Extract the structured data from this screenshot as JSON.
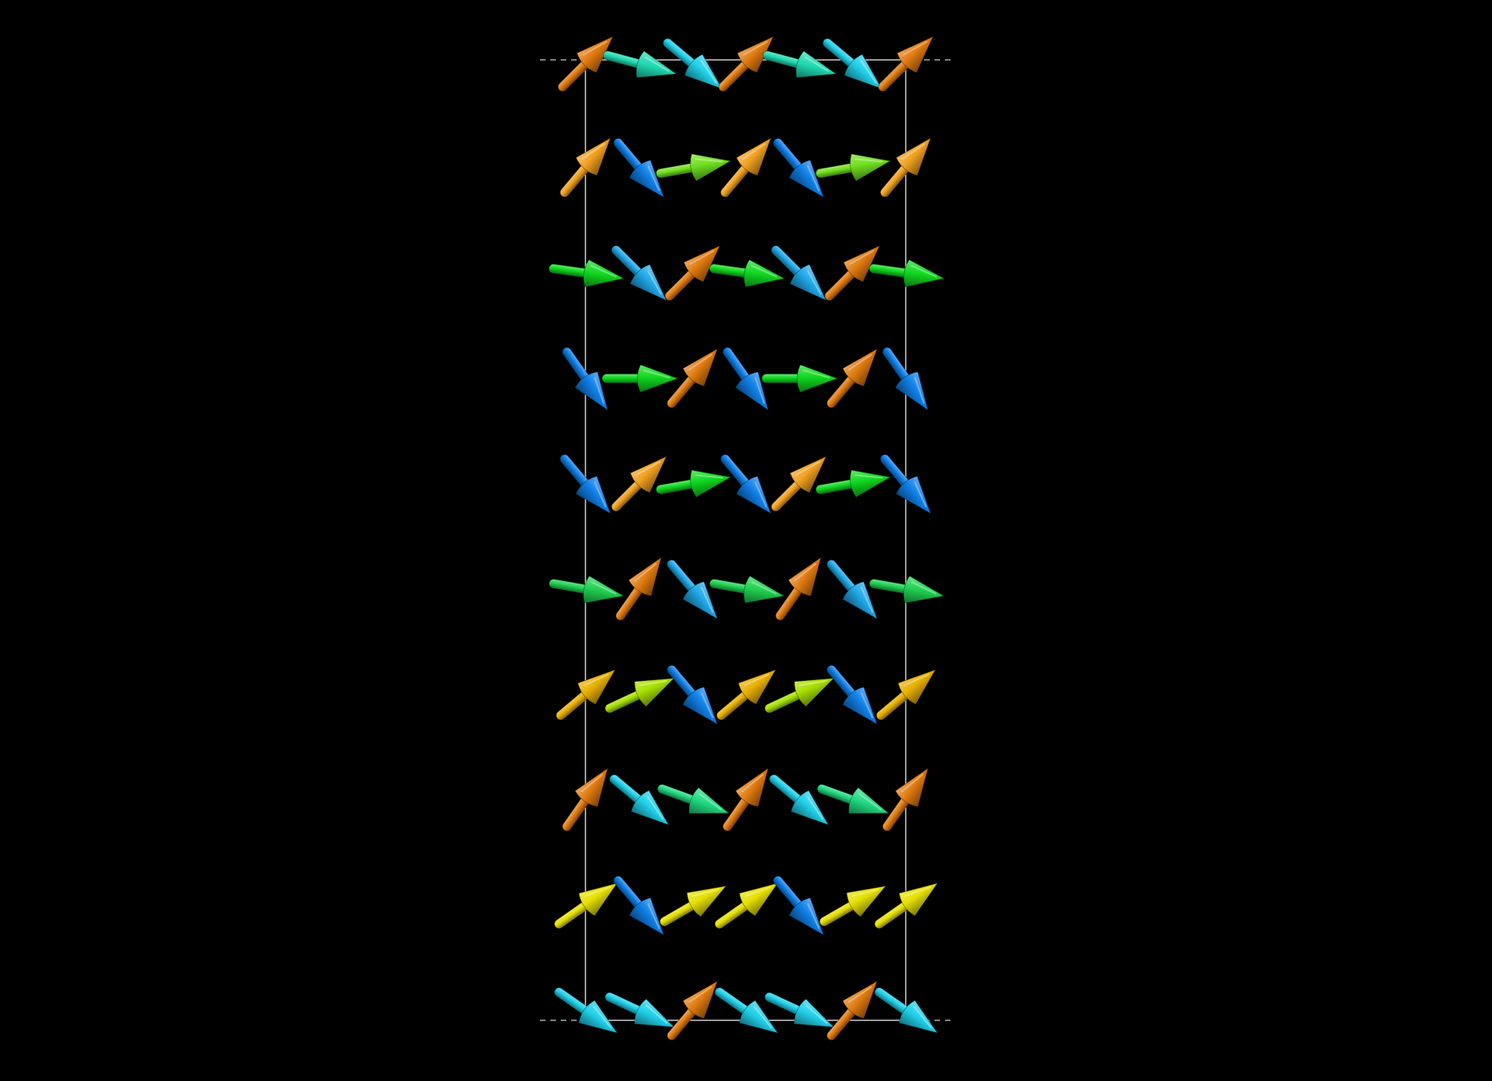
{
  "view": {
    "background": "#000000",
    "cell_line_color": "#ffffff"
  },
  "palette": {
    "orange": "#e07a10",
    "orange_light": "#f0a020",
    "gold": "#e8b000",
    "yellow": "#e6e000",
    "yellow_green": "#a8e000",
    "lime": "#70e020",
    "green": "#10d820",
    "green_mid": "#20d050",
    "sea_green": "#20d880",
    "teal": "#20d8b0",
    "cyan": "#20d0e8",
    "sky": "#20a8e8",
    "blue": "#1080e8"
  },
  "legend": "none",
  "rows": [
    {
      "id": "row-1",
      "arrows": [
        {
          "color": "orange",
          "angle": -45
        },
        {
          "color": "teal",
          "angle": 15
        },
        {
          "color": "cyan",
          "angle": 40
        },
        {
          "color": "orange",
          "angle": -45
        },
        {
          "color": "teal",
          "angle": 15
        },
        {
          "color": "cyan",
          "angle": 40
        },
        {
          "color": "orange",
          "angle": -45
        }
      ]
    },
    {
      "id": "row-2",
      "arrows": [
        {
          "color": "orange_light",
          "angle": -50
        },
        {
          "color": "blue",
          "angle": 50
        },
        {
          "color": "lime",
          "angle": -10
        },
        {
          "color": "orange_light",
          "angle": -50
        },
        {
          "color": "blue",
          "angle": 50
        },
        {
          "color": "lime",
          "angle": -10
        },
        {
          "color": "orange_light",
          "angle": -50
        }
      ]
    },
    {
      "id": "row-3",
      "arrows": [
        {
          "color": "green",
          "angle": 8
        },
        {
          "color": "sky",
          "angle": 45
        },
        {
          "color": "orange",
          "angle": -45
        },
        {
          "color": "green",
          "angle": 8
        },
        {
          "color": "sky",
          "angle": 45
        },
        {
          "color": "orange",
          "angle": -45
        },
        {
          "color": "green",
          "angle": 8
        }
      ]
    },
    {
      "id": "row-4",
      "arrows": [
        {
          "color": "blue",
          "angle": 55
        },
        {
          "color": "green",
          "angle": 0
        },
        {
          "color": "orange",
          "angle": -50
        },
        {
          "color": "blue",
          "angle": 55
        },
        {
          "color": "green",
          "angle": 0
        },
        {
          "color": "orange",
          "angle": -50
        },
        {
          "color": "blue",
          "angle": 55
        }
      ]
    },
    {
      "id": "row-5",
      "arrows": [
        {
          "color": "blue",
          "angle": 50
        },
        {
          "color": "orange_light",
          "angle": -45
        },
        {
          "color": "green",
          "angle": -10
        },
        {
          "color": "blue",
          "angle": 50
        },
        {
          "color": "orange_light",
          "angle": -45
        },
        {
          "color": "green",
          "angle": -10
        },
        {
          "color": "blue",
          "angle": 50
        }
      ]
    },
    {
      "id": "row-6",
      "arrows": [
        {
          "color": "green_mid",
          "angle": 10
        },
        {
          "color": "orange",
          "angle": -55
        },
        {
          "color": "sky",
          "angle": 50
        },
        {
          "color": "green_mid",
          "angle": 10
        },
        {
          "color": "orange",
          "angle": -55
        },
        {
          "color": "sky",
          "angle": 50
        },
        {
          "color": "green_mid",
          "angle": 10
        }
      ]
    },
    {
      "id": "row-7",
      "arrows": [
        {
          "color": "gold",
          "angle": -40
        },
        {
          "color": "yellow_green",
          "angle": -25
        },
        {
          "color": "blue",
          "angle": 50
        },
        {
          "color": "gold",
          "angle": -40
        },
        {
          "color": "yellow_green",
          "angle": -25
        },
        {
          "color": "blue",
          "angle": 50
        },
        {
          "color": "gold",
          "angle": -40
        }
      ]
    },
    {
      "id": "row-8",
      "arrows": [
        {
          "color": "orange",
          "angle": -55
        },
        {
          "color": "cyan",
          "angle": 40
        },
        {
          "color": "sea_green",
          "angle": 20
        },
        {
          "color": "orange",
          "angle": -55
        },
        {
          "color": "cyan",
          "angle": 40
        },
        {
          "color": "sea_green",
          "angle": 20
        },
        {
          "color": "orange",
          "angle": -55
        }
      ]
    },
    {
      "id": "row-9",
      "arrows": [
        {
          "color": "yellow",
          "angle": -35
        },
        {
          "color": "blue",
          "angle": 50
        },
        {
          "color": "yellow",
          "angle": -30
        },
        {
          "color": "yellow",
          "angle": -35
        },
        {
          "color": "blue",
          "angle": 50
        },
        {
          "color": "yellow",
          "angle": -30
        },
        {
          "color": "yellow",
          "angle": -35
        }
      ]
    },
    {
      "id": "row-10",
      "arrows": [
        {
          "color": "cyan",
          "angle": 35
        },
        {
          "color": "cyan",
          "angle": 25
        },
        {
          "color": "orange",
          "angle": -50
        },
        {
          "color": "cyan",
          "angle": 35
        },
        {
          "color": "cyan",
          "angle": 25
        },
        {
          "color": "orange",
          "angle": -50
        },
        {
          "color": "cyan",
          "angle": 35
        }
      ]
    }
  ]
}
